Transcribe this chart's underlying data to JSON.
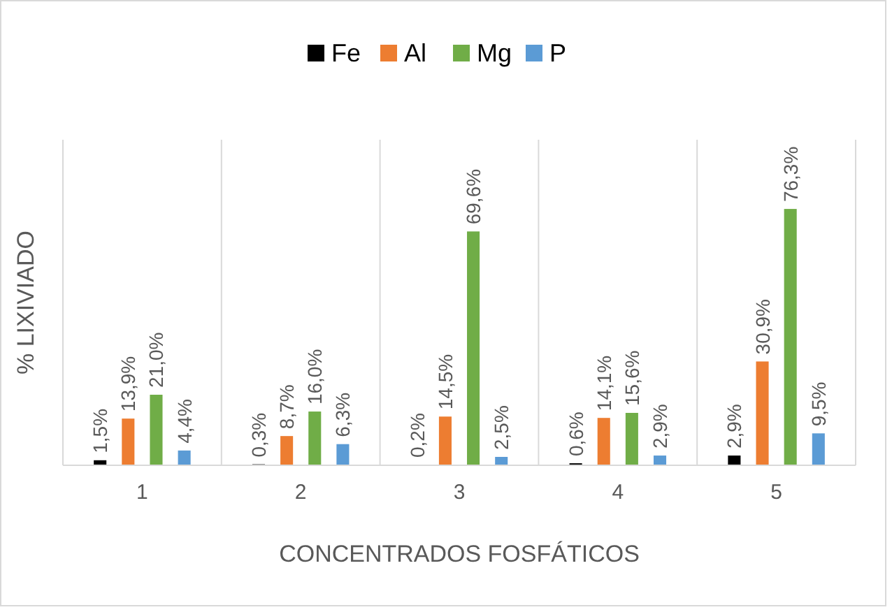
{
  "chart_data": {
    "type": "bar",
    "xlabel": "CONCENTRADOS FOSFÁTICOS",
    "ylabel": "% LIXIVIADO",
    "categories": [
      "1",
      "2",
      "3",
      "4",
      "5"
    ],
    "grid": "x",
    "legend": "top",
    "series": [
      {
        "name": "Fe",
        "color": "#000000",
        "values": [
          1.5,
          0.3,
          0.2,
          0.6,
          2.9
        ],
        "value_labels": [
          "1,5%",
          "0,3%",
          "0,2%",
          "0,6%",
          "2,9%"
        ]
      },
      {
        "name": "Al",
        "color": "#ed7d31",
        "values": [
          13.9,
          8.7,
          14.5,
          14.1,
          30.9
        ],
        "value_labels": [
          "13,9%",
          "8,7%",
          "14,5%",
          "14,1%",
          "30,9%"
        ]
      },
      {
        "name": "Mg",
        "color": "#70ad47",
        "values": [
          21.0,
          16.0,
          69.6,
          15.6,
          76.3
        ],
        "value_labels": [
          "21,0%",
          "16,0%",
          "69,6%",
          "15,6%",
          "76,3%"
        ]
      },
      {
        "name": "P",
        "color": "#5b9bd5",
        "values": [
          4.4,
          6.3,
          2.5,
          2.9,
          9.5
        ],
        "value_labels": [
          "4,4%",
          "6,3%",
          "2,5%",
          "2,9%",
          "9,5%"
        ]
      }
    ]
  }
}
